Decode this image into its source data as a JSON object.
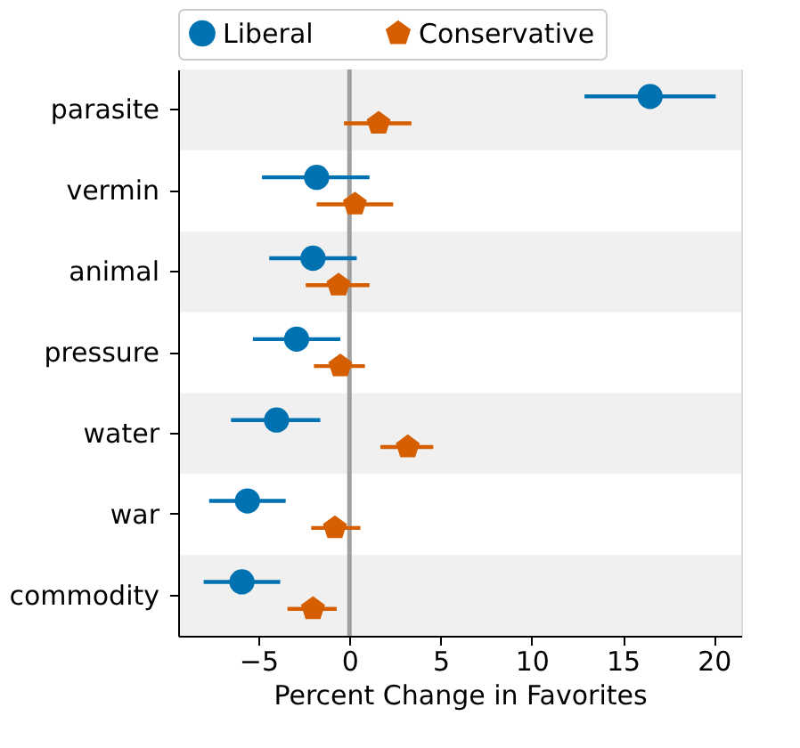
{
  "chart_data": {
    "type": "scatter",
    "orientation": "horizontal",
    "xlabel": "Percent Change in Favorites",
    "categories": [
      "parasite",
      "vermin",
      "animal",
      "pressure",
      "water",
      "war",
      "commodity"
    ],
    "series": [
      {
        "name": "Liberal",
        "color": "#0072b2",
        "values": [
          16.5,
          -1.8,
          -2.0,
          -2.9,
          -4.0,
          -5.6,
          -5.9
        ],
        "errors": [
          [
            12.9,
            20.1
          ],
          [
            -4.8,
            1.1
          ],
          [
            -4.4,
            0.4
          ],
          [
            -5.3,
            -0.5
          ],
          [
            -6.5,
            -1.6
          ],
          [
            -7.7,
            -3.5
          ],
          [
            -8.0,
            -3.8
          ]
        ]
      },
      {
        "name": "Conservative",
        "color": "#d55e00",
        "values": [
          1.6,
          0.3,
          -0.6,
          -0.5,
          3.2,
          -0.8,
          -2.0
        ],
        "errors": [
          [
            -0.3,
            3.4
          ],
          [
            -1.8,
            2.4
          ],
          [
            -2.4,
            1.1
          ],
          [
            -1.95,
            0.85
          ],
          [
            1.7,
            4.6
          ],
          [
            -2.1,
            0.6
          ],
          [
            -3.4,
            -0.7
          ]
        ]
      }
    ],
    "xlim": [
      -9.4,
      21.5
    ],
    "xticks": [
      -5,
      0,
      5,
      10,
      15,
      20
    ],
    "ref_lines": [
      {
        "axis": "x",
        "value": 0,
        "color": "#a0a0a0"
      }
    ],
    "grid": false,
    "legend": "top"
  }
}
